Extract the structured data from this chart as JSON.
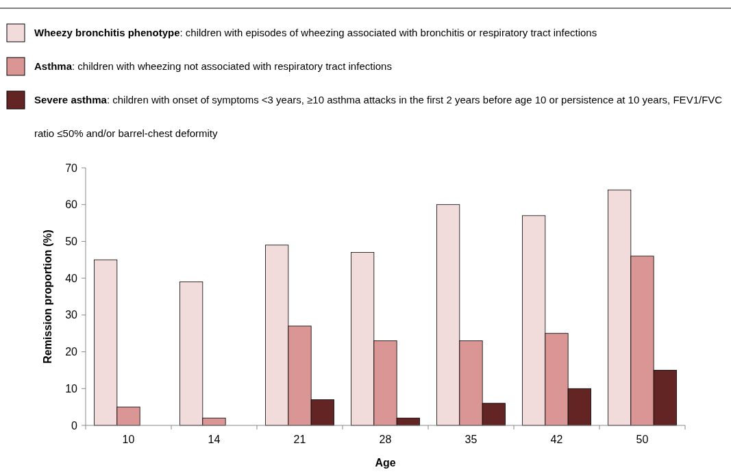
{
  "chart_data": {
    "type": "bar",
    "xlabel": "Age",
    "ylabel": "Remission proportion (%)",
    "categories": [
      "10",
      "14",
      "21",
      "28",
      "35",
      "42",
      "50"
    ],
    "series": [
      {
        "name": "Wheezy bronchitis phenotype: children with episodes of wheezing associated with bronchitis or respiratory tract infections",
        "color": "#f2dcdb",
        "values": [
          45,
          39,
          49,
          47,
          60,
          57,
          64
        ]
      },
      {
        "name": "Asthma: children with wheezing not associated with respiratory tract infections",
        "color": "#d99694",
        "values": [
          5,
          2,
          27,
          23,
          23,
          25,
          46
        ]
      },
      {
        "name": "Severe asthma: children with onset of symptoms <3 years, ≥10 asthma attacks in the first 2 years before age 10 or persistence at 10 years, FEV1/FVC ratio ≤50% and/or barrel-chest deformity",
        "color": "#632523",
        "values": [
          null,
          null,
          7,
          2,
          6,
          10,
          15
        ]
      }
    ],
    "ylim": [
      0,
      70
    ],
    "yticks": [
      0,
      10,
      20,
      30,
      40,
      50,
      60,
      70
    ],
    "grid": false,
    "legend": "top"
  }
}
